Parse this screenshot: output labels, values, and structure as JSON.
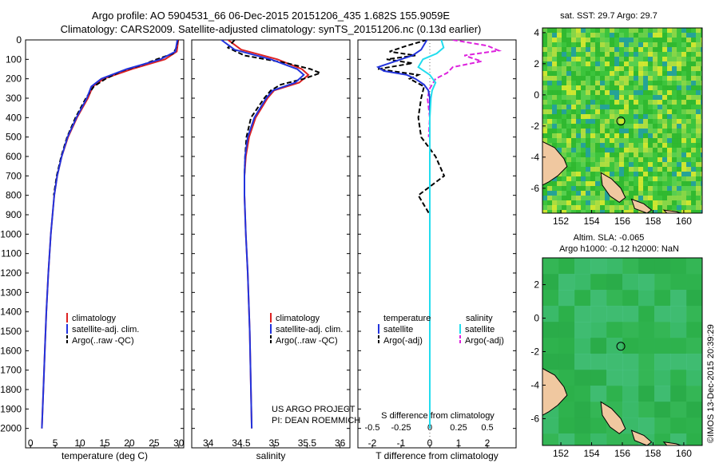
{
  "header": {
    "line1": "Argo profile: AO 5904531_66 06-Dec-2015 20151206_435 1.682S 155.9059E",
    "line2": "Climatology: CARS2009. Satellite-adjusted climatology: synTS_20151206.nc (0.13d earlier)"
  },
  "colors": {
    "clim": "#dd2222",
    "sat_adj": "#2233dd",
    "argo": "#000000",
    "sat_s": "#22ddee",
    "argo_s": "#dd22dd",
    "land": "#f0c8a0"
  },
  "chart_data": [
    {
      "type": "line",
      "id": "temperature",
      "xlabel": "temperature (deg C)",
      "ylabel": "",
      "xlim": [
        -1,
        31
      ],
      "ylim": [
        0,
        2100
      ],
      "xticks": [
        "0",
        "5",
        "10",
        "15",
        "20",
        "25",
        "30"
      ],
      "yticks": [
        "0",
        "100",
        "200",
        "300",
        "400",
        "500",
        "600",
        "700",
        "800",
        "900",
        "1000",
        "1100",
        "1200",
        "1300",
        "1400",
        "1500",
        "1600",
        "1700",
        "1800",
        "1900",
        "2000"
      ],
      "legend": [
        "climatology",
        "satellite-adj. clim.",
        "Argo(..raw -QC)"
      ],
      "series": [
        {
          "name": "climatology",
          "depth": [
            0,
            60,
            100,
            150,
            200,
            240,
            300,
            400,
            500,
            600,
            700,
            800,
            1000,
            1200,
            1400,
            1600,
            1800,
            2000
          ],
          "values": [
            29.9,
            29.6,
            27.2,
            20.5,
            14.8,
            12.6,
            11.6,
            9.4,
            7.6,
            6.3,
            5.4,
            4.8,
            4.1,
            3.6,
            3.2,
            2.9,
            2.6,
            2.3
          ]
        },
        {
          "name": "satellite-adj. clim.",
          "depth": [
            0,
            60,
            100,
            150,
            200,
            240,
            300,
            400,
            500,
            600,
            700,
            800,
            1000,
            1200,
            1400,
            1600,
            1800,
            2000
          ],
          "values": [
            29.7,
            29.3,
            26.3,
            19.5,
            14.3,
            12.3,
            11.4,
            9.3,
            7.5,
            6.3,
            5.4,
            4.8,
            4.1,
            3.6,
            3.2,
            2.9,
            2.6,
            2.3
          ]
        },
        {
          "name": "Argo(..raw -QC)",
          "depth": [
            0,
            40,
            70,
            100,
            130,
            160,
            200,
            240,
            300,
            400,
            500,
            600,
            700,
            800
          ],
          "values": [
            29.8,
            29.5,
            28.9,
            25.5,
            22.5,
            18.5,
            15.2,
            12.8,
            11.2,
            9.1,
            7.4,
            6.2,
            5.3,
            4.7
          ]
        }
      ]
    },
    {
      "type": "line",
      "id": "salinity",
      "xlabel": "salinity",
      "xlim": [
        33.75,
        36.15
      ],
      "ylim": [
        0,
        2100
      ],
      "xticks": [
        "34",
        "34.5",
        "35",
        "35.5",
        "36"
      ],
      "legend": [
        "climatology",
        "satellite-adj. clim.",
        "Argo(..raw -QC)"
      ],
      "series": [
        {
          "name": "climatology",
          "depth": [
            0,
            50,
            100,
            150,
            180,
            220,
            260,
            300,
            400,
            500,
            600,
            700,
            800,
            1000,
            1200,
            1500,
            2000
          ],
          "values": [
            34.3,
            34.5,
            35.05,
            35.42,
            35.52,
            35.38,
            35.0,
            34.9,
            34.72,
            34.62,
            34.57,
            34.55,
            34.55,
            34.57,
            34.6,
            34.63,
            34.66
          ]
        },
        {
          "name": "satellite-adj. clim.",
          "depth": [
            0,
            50,
            100,
            150,
            180,
            220,
            260,
            300,
            400,
            500,
            600,
            700,
            800,
            1000,
            1200,
            1500,
            2000
          ],
          "values": [
            34.2,
            34.4,
            34.95,
            35.35,
            35.45,
            35.32,
            34.98,
            34.88,
            34.7,
            34.6,
            34.56,
            34.55,
            34.55,
            34.57,
            34.6,
            34.63,
            34.66
          ]
        },
        {
          "name": "Argo(..raw -QC)",
          "depth": [
            0,
            40,
            80,
            120,
            150,
            170,
            200,
            230,
            260,
            300,
            400,
            500,
            600,
            700,
            800
          ],
          "values": [
            34.4,
            34.3,
            34.55,
            35.2,
            35.55,
            35.7,
            35.45,
            35.1,
            34.95,
            34.85,
            34.65,
            34.58,
            34.56,
            34.55,
            34.55
          ]
        }
      ],
      "annotations": [
        "US ARGO PROJECT",
        "PI: DEAN ROEMMICH"
      ]
    },
    {
      "type": "line",
      "id": "differences",
      "xlabel": "T difference from climatology",
      "xlabel2": "S difference from climatology",
      "xlim": [
        -2.5,
        3.0
      ],
      "ylim": [
        0,
        2100
      ],
      "xticks": [
        "-2",
        "-1",
        "0",
        "1",
        "2"
      ],
      "xticks_top": [
        "-0.5",
        "-0.25",
        "0",
        "0.25",
        "0.5"
      ],
      "legend_t": {
        "title": "temperature",
        "items": [
          "satellite",
          "Argo(-adj)"
        ]
      },
      "legend_s": {
        "title": "salinity",
        "items": [
          "satellite",
          "Argo(-adj)"
        ]
      },
      "series": [
        {
          "name": "temperature satellite",
          "depth": [
            0,
            50,
            80,
            100,
            120,
            140,
            160,
            180,
            200,
            230,
            260,
            300,
            500,
            1000,
            2000
          ],
          "values": [
            -0.1,
            -0.3,
            -0.6,
            -1.0,
            -1.4,
            -1.8,
            -1.6,
            -0.8,
            -0.5,
            -0.2,
            -0.05,
            0.0,
            0.0,
            0.0,
            0.0
          ]
        },
        {
          "name": "temperature Argo(-adj)",
          "depth": [
            0,
            30,
            60,
            80,
            100,
            120,
            150,
            180,
            200,
            240,
            300,
            400,
            500,
            600,
            700,
            800,
            900
          ],
          "values": [
            -0.1,
            -0.8,
            -1.4,
            -0.5,
            -1.5,
            -0.6,
            -1.8,
            -0.4,
            -0.7,
            -0.2,
            -0.3,
            -0.4,
            -0.3,
            0.2,
            0.5,
            -0.4,
            0.0
          ]
        },
        {
          "name": "salinity satellite",
          "depth": [
            0,
            40,
            70,
            100,
            140,
            180,
            220,
            260,
            300,
            400,
            600,
            1000,
            2000
          ],
          "values": [
            0.1,
            0.12,
            0.06,
            -0.06,
            -0.1,
            0.0,
            0.05,
            0.02,
            0.01,
            0.0,
            0.0,
            0.0,
            0.0
          ]
        },
        {
          "name": "salinity Argo(-adj)",
          "depth": [
            0,
            30,
            55,
            80,
            110,
            140,
            170,
            200,
            250,
            300,
            400,
            500
          ],
          "values": [
            0.2,
            0.5,
            0.6,
            0.3,
            0.45,
            0.2,
            0.15,
            0.05,
            0.0,
            -0.02,
            0.0,
            -0.01
          ]
        }
      ]
    },
    {
      "type": "heatmap",
      "id": "sst_map",
      "title": "sat. SST: 29.7 Argo: 29.7",
      "xticks": [
        "152",
        "154",
        "156",
        "158",
        "160"
      ],
      "yticks": [
        "4",
        "2",
        "0",
        "-2",
        "-4",
        "-6"
      ],
      "xlim": [
        150.8,
        161.2
      ],
      "ylim": [
        -7.6,
        4.3
      ],
      "marker": {
        "lon": 155.9,
        "lat": -1.68
      }
    },
    {
      "type": "heatmap",
      "id": "sla_map",
      "title": "Altim. SLA: -0.065",
      "subtitle": "Argo h1000: -0.12 h2000: NaN",
      "xticks": [
        "152",
        "154",
        "156",
        "158",
        "160"
      ],
      "yticks": [
        "2",
        "0",
        "-2",
        "-4",
        "-6"
      ],
      "xlim": [
        150.8,
        161.2
      ],
      "ylim": [
        -7.6,
        3.6
      ],
      "marker": {
        "lon": 155.9,
        "lat": -1.68
      }
    }
  ],
  "credit": "©IMOS 13-Dec-2015 20:39:29"
}
